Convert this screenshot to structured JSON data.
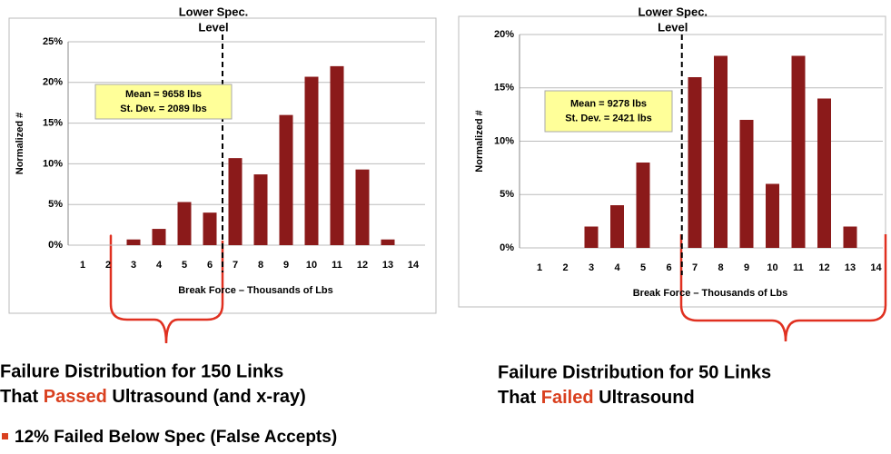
{
  "chart_data": [
    {
      "type": "bar",
      "categories": [
        "1",
        "2",
        "3",
        "4",
        "5",
        "6",
        "7",
        "8",
        "9",
        "10",
        "11",
        "12",
        "13",
        "14"
      ],
      "values": [
        0,
        0,
        0.7,
        2,
        5.3,
        4,
        10.7,
        8.7,
        16,
        20.7,
        22,
        9.3,
        0.7,
        0
      ],
      "color": "#8b1a1a",
      "ylim": [
        0,
        25
      ],
      "yticks": [
        {
          "value": 0,
          "label": "0%"
        },
        {
          "value": 5,
          "label": "5%"
        },
        {
          "value": 10,
          "label": "10%"
        },
        {
          "value": 15,
          "label": "15%"
        },
        {
          "value": 20,
          "label": "20%"
        },
        {
          "value": 25,
          "label": "25%"
        }
      ],
      "grid": true,
      "y_label": "Normalized #",
      "x_label": "Break Force – Thousands of Lbs",
      "spec_line": {
        "label_lines": [
          "Lower Spec.",
          "Level"
        ],
        "x": 6.5
      },
      "annotation_lines": [
        "Mean = 9658 lbs",
        "St. Dev. = 2089 lbs"
      ]
    },
    {
      "type": "bar",
      "categories": [
        "1",
        "2",
        "3",
        "4",
        "5",
        "6",
        "7",
        "8",
        "9",
        "10",
        "11",
        "12",
        "13",
        "14"
      ],
      "values": [
        0,
        0,
        2,
        4,
        8,
        0,
        16,
        18,
        12,
        6,
        18,
        14,
        2,
        0
      ],
      "color": "#8b1a1a",
      "ylim": [
        0,
        20
      ],
      "yticks": [
        {
          "value": 0,
          "label": "0%"
        },
        {
          "value": 5,
          "label": "5%"
        },
        {
          "value": 10,
          "label": "10%"
        },
        {
          "value": 15,
          "label": "15%"
        },
        {
          "value": 20,
          "label": "20%"
        }
      ],
      "grid": true,
      "y_label": "Normalized #",
      "x_label": "Break Force – Thousands of Lbs",
      "spec_line": {
        "label_lines": [
          "Lower Spec.",
          "Level"
        ],
        "x": 6.5
      },
      "annotation_lines": [
        "Mean = 9278 lbs",
        "St. Dev. = 2421 lbs"
      ]
    }
  ],
  "captions": [
    {
      "line1": "Failure Distribution for 150 Links",
      "pre": "That ",
      "highlight": "Passed",
      "post": " Ultrasound (and x-ray)"
    },
    {
      "line1": "Failure Distribution for 50 Links",
      "pre": "That ",
      "highlight": "Failed",
      "post": " Ultrasound"
    }
  ],
  "bullet": "12% Failed Below Spec (False Accepts)"
}
